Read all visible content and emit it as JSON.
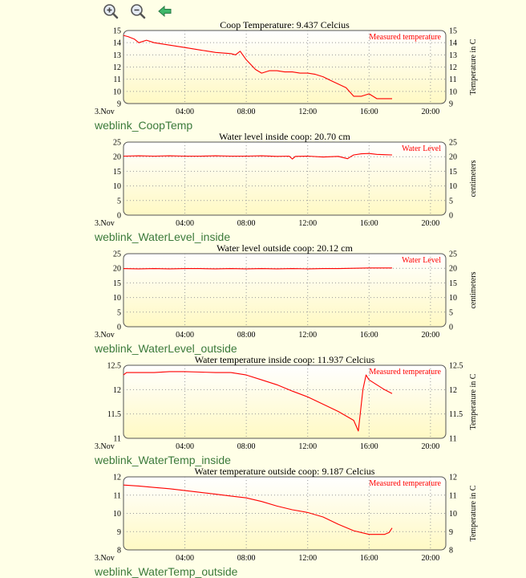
{
  "toolbar": {
    "zoom_in": "zoom-in-icon",
    "zoom_out": "zoom-out-icon",
    "back": "back-arrow-icon"
  },
  "colors": {
    "background": "#FFFFE7",
    "plot_top": "#FFFFFF",
    "plot_bottom": "#FFF9C4",
    "series": "#FF0000",
    "link": "#3B7A3B",
    "grid": "#999999"
  },
  "chart_data": [
    {
      "type": "line",
      "title": "Coop Temperature: 9.437 Celcius",
      "link_label": "weblink_CoopTemp",
      "ylabel": "Temperature in C",
      "legend": "Measured temperature",
      "legend_position": "top-right",
      "ylim": [
        9,
        15
      ],
      "yticks": [
        "9",
        "10",
        "11",
        "12",
        "13",
        "14",
        "15"
      ],
      "xlim": [
        0,
        21
      ],
      "xticks": [
        {
          "x": 0,
          "label": "3.Nov"
        },
        {
          "x": 4,
          "label": "04:00"
        },
        {
          "x": 8,
          "label": "08:00"
        },
        {
          "x": 12,
          "label": "12:00"
        },
        {
          "x": 16,
          "label": "16:00"
        },
        {
          "x": 20,
          "label": "20:00"
        }
      ],
      "grid": true,
      "series": [
        {
          "x": [
            0,
            0.3,
            0.7,
            1.0,
            1.5,
            2,
            3,
            4,
            5,
            6,
            7,
            7.3,
            7.6,
            8.0,
            8.3,
            8.6,
            9.0,
            9.5,
            10,
            10.5,
            11,
            11.5,
            12,
            12.5,
            13,
            13.5,
            14,
            14.5,
            15,
            15.5,
            16,
            16.5,
            17,
            17.5
          ],
          "y": [
            14.6,
            14.5,
            14.3,
            14.0,
            14.2,
            14.0,
            13.8,
            13.6,
            13.4,
            13.2,
            13.1,
            13.0,
            13.3,
            12.6,
            12.2,
            11.8,
            11.5,
            11.7,
            11.7,
            11.6,
            11.6,
            11.5,
            11.5,
            11.4,
            11.2,
            10.9,
            10.6,
            10.3,
            9.6,
            9.6,
            9.8,
            9.4,
            9.4,
            9.4
          ]
        }
      ]
    },
    {
      "type": "line",
      "title": "Water level inside coop: 20.70 cm",
      "link_label": "weblink_WaterLevel_inside",
      "ylabel": "centimeters",
      "legend": "Water Level",
      "legend_position": "top-right",
      "ylim": [
        0,
        25
      ],
      "yticks": [
        "0",
        "5",
        "10",
        "15",
        "20",
        "25"
      ],
      "xlim": [
        0,
        21
      ],
      "xticks": [
        {
          "x": 0,
          "label": "3.Nov"
        },
        {
          "x": 4,
          "label": "04:00"
        },
        {
          "x": 8,
          "label": "08:00"
        },
        {
          "x": 12,
          "label": "12:00"
        },
        {
          "x": 16,
          "label": "16:00"
        },
        {
          "x": 20,
          "label": "20:00"
        }
      ],
      "grid": true,
      "series": [
        {
          "x": [
            0,
            1,
            2,
            3,
            4,
            5,
            6,
            7,
            8,
            9,
            10,
            10.8,
            11.0,
            11.2,
            12,
            13,
            14,
            14.6,
            14.8,
            15,
            15.5,
            16,
            16.5,
            17,
            17.5
          ],
          "y": [
            20.2,
            20.3,
            20.2,
            20.3,
            20.2,
            20.2,
            20.3,
            20.2,
            20.2,
            20.3,
            20.1,
            20.2,
            19.2,
            20.1,
            20.2,
            19.9,
            20.1,
            19.3,
            20.0,
            20.6,
            21.0,
            21.1,
            20.8,
            20.7,
            20.6
          ]
        }
      ]
    },
    {
      "type": "line",
      "title": "Water level outside coop: 20.12 cm",
      "link_label": "weblink_WaterLevel_outside",
      "ylabel": "centimeters",
      "legend": "Water Level",
      "legend_position": "top-right",
      "ylim": [
        0,
        25
      ],
      "yticks": [
        "0",
        "5",
        "10",
        "15",
        "20",
        "25"
      ],
      "xlim": [
        0,
        21
      ],
      "xticks": [
        {
          "x": 0,
          "label": "3.Nov"
        },
        {
          "x": 4,
          "label": "04:00"
        },
        {
          "x": 8,
          "label": "08:00"
        },
        {
          "x": 12,
          "label": "12:00"
        },
        {
          "x": 16,
          "label": "16:00"
        },
        {
          "x": 20,
          "label": "20:00"
        }
      ],
      "grid": true,
      "series": [
        {
          "x": [
            0,
            1,
            2,
            3,
            4,
            5,
            6,
            7,
            8,
            9,
            10,
            11,
            12,
            13,
            14,
            15,
            16,
            17,
            17.5
          ],
          "y": [
            19.9,
            19.8,
            19.9,
            19.8,
            19.9,
            19.9,
            19.8,
            19.9,
            19.8,
            19.9,
            19.8,
            19.9,
            19.8,
            19.9,
            19.9,
            20.0,
            20.1,
            20.1,
            20.1
          ]
        }
      ]
    },
    {
      "type": "line",
      "title": "Water temperature inside coop: 11.937 Celcius",
      "link_label": "weblink_WaterTemp_inside",
      "ylabel": "Temperature in C",
      "legend": "Measured temperature",
      "legend_position": "top-right",
      "ylim": [
        11,
        12.5
      ],
      "yticks": [
        "11",
        "11.5",
        "12",
        "12.5"
      ],
      "xlim": [
        0,
        21
      ],
      "xticks": [
        {
          "x": 0,
          "label": "3.Nov"
        },
        {
          "x": 4,
          "label": "04:00"
        },
        {
          "x": 8,
          "label": "08:00"
        },
        {
          "x": 12,
          "label": "12:00"
        },
        {
          "x": 16,
          "label": "16:00"
        },
        {
          "x": 20,
          "label": "20:00"
        }
      ],
      "grid": true,
      "series": [
        {
          "x": [
            0,
            0.2,
            1.0,
            2.0,
            3.0,
            4.0,
            5.0,
            6.0,
            7.0,
            8.0,
            9.0,
            10.0,
            11.0,
            12.0,
            13.0,
            14.0,
            15.0,
            15.3,
            15.6,
            15.8,
            16.0,
            16.5,
            17.0,
            17.5
          ],
          "y": [
            12.3,
            12.35,
            12.35,
            12.35,
            12.37,
            12.37,
            12.36,
            12.35,
            12.35,
            12.3,
            12.2,
            12.1,
            11.97,
            11.85,
            11.7,
            11.55,
            11.37,
            11.15,
            12.0,
            12.3,
            12.2,
            12.1,
            12.0,
            11.92
          ]
        }
      ]
    },
    {
      "type": "line",
      "title": "Water temperature outside coop: 9.187 Celcius",
      "link_label": "weblink_WaterTemp_outside",
      "ylabel": "Temperature in C",
      "legend": "Measured temperature",
      "legend_position": "top-right",
      "ylim": [
        8,
        12
      ],
      "yticks": [
        "8",
        "9",
        "10",
        "11",
        "12"
      ],
      "xlim": [
        0,
        21
      ],
      "xticks": [
        {
          "x": 0,
          "label": "3.Nov"
        },
        {
          "x": 4,
          "label": "04:00"
        },
        {
          "x": 8,
          "label": "08:00"
        },
        {
          "x": 12,
          "label": "12:00"
        },
        {
          "x": 16,
          "label": "16:00"
        },
        {
          "x": 20,
          "label": "20:00"
        }
      ],
      "grid": true,
      "series": [
        {
          "x": [
            0,
            1,
            2,
            3,
            4,
            5,
            6,
            7,
            8,
            9,
            10,
            11,
            12,
            13,
            14,
            15,
            16,
            16.5,
            17,
            17.3,
            17.5
          ],
          "y": [
            11.55,
            11.5,
            11.42,
            11.35,
            11.25,
            11.15,
            11.05,
            10.95,
            10.85,
            10.65,
            10.4,
            10.2,
            10.05,
            9.8,
            9.4,
            9.05,
            8.85,
            8.85,
            8.85,
            8.95,
            9.2
          ]
        }
      ]
    }
  ]
}
